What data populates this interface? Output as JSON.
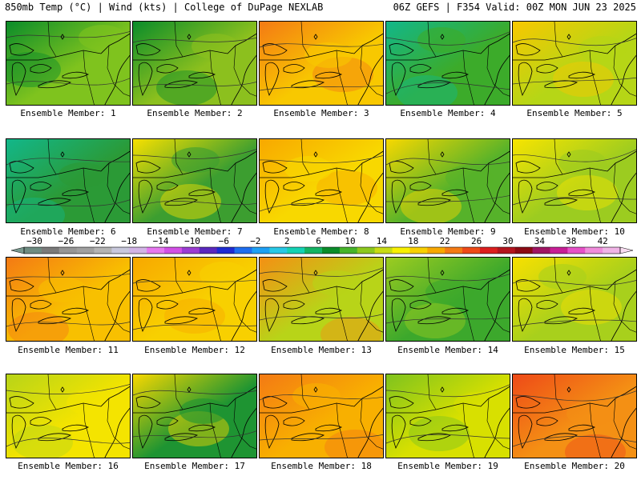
{
  "header": {
    "title": "850mb Temp (°C) | Wind (kts) | College of DuPage NEXLAB",
    "run_info": "06Z GEFS | F354 Valid: 00Z MON JUN 23 2025"
  },
  "panels": [
    {
      "label": "Ensemble Member: 1",
      "base": "#7fc31e",
      "tint": "#0a8c2a"
    },
    {
      "label": "Ensemble Member: 2",
      "base": "#8cc01e",
      "tint": "#0a8c2a"
    },
    {
      "label": "Ensemble Member: 3",
      "base": "#f8c800",
      "tint": "#f47a14"
    },
    {
      "label": "Ensemble Member: 4",
      "base": "#3cab2a",
      "tint": "#12b78a"
    },
    {
      "label": "Ensemble Member: 5",
      "base": "#b6d616",
      "tint": "#f8c800"
    },
    {
      "label": "Ensemble Member: 6",
      "base": "#2b9a36",
      "tint": "#12b78a"
    },
    {
      "label": "Ensemble Member: 7",
      "base": "#3c9e30",
      "tint": "#f8e000"
    },
    {
      "label": "Ensemble Member: 8",
      "base": "#f8d800",
      "tint": "#f8a800"
    },
    {
      "label": "Ensemble Member: 9",
      "base": "#56b22a",
      "tint": "#f8d800"
    },
    {
      "label": "Ensemble Member: 10",
      "base": "#9ccc20",
      "tint": "#f8e400"
    },
    {
      "label": "Ensemble Member: 11",
      "base": "#f8c000",
      "tint": "#f47a14"
    },
    {
      "label": "Ensemble Member: 12",
      "base": "#f8d000",
      "tint": "#f8a800"
    },
    {
      "label": "Ensemble Member: 13",
      "base": "#b8d418",
      "tint": "#f49014"
    },
    {
      "label": "Ensemble Member: 14",
      "base": "#3ca82c",
      "tint": "#9ccc20"
    },
    {
      "label": "Ensemble Member: 15",
      "base": "#a8d01c",
      "tint": "#f8e000"
    },
    {
      "label": "Ensemble Member: 16",
      "base": "#f4e400",
      "tint": "#b8d418"
    },
    {
      "label": "Ensemble Member: 17",
      "base": "#1e9432",
      "tint": "#f8d800"
    },
    {
      "label": "Ensemble Member: 18",
      "base": "#f8b000",
      "tint": "#f47a14"
    },
    {
      "label": "Ensemble Member: 19",
      "base": "#d8e000",
      "tint": "#7fc31e"
    },
    {
      "label": "Ensemble Member: 20",
      "base": "#f49014",
      "tint": "#ee4a18"
    }
  ],
  "colorbar": {
    "tick_labels": [
      "−30",
      "−26",
      "−22",
      "−18",
      "−14",
      "−10",
      "−6",
      "−2",
      "2",
      "6",
      "10",
      "14",
      "18",
      "22",
      "26",
      "30",
      "34",
      "38",
      "42"
    ],
    "colors": [
      "#6e8c82",
      "#7a7a7a",
      "#969696",
      "#a0a0a0",
      "#b4b4b4",
      "#c8c8dc",
      "#d2b4e6",
      "#e678f0",
      "#d250e6",
      "#9b3cd2",
      "#5a28be",
      "#1e2bd2",
      "#1e6ef0",
      "#1ea0f5",
      "#28c8e6",
      "#14d2b4",
      "#14b464",
      "#0a8c2a",
      "#46b42a",
      "#8cc81e",
      "#c8dc14",
      "#f8f000",
      "#f8d000",
      "#f8a800",
      "#f47a14",
      "#ee4a18",
      "#dc1e1e",
      "#b4141e",
      "#8c0a14",
      "#a01464",
      "#c81e96",
      "#e650c8",
      "#f08cdc",
      "#f0b4e6"
    ]
  }
}
